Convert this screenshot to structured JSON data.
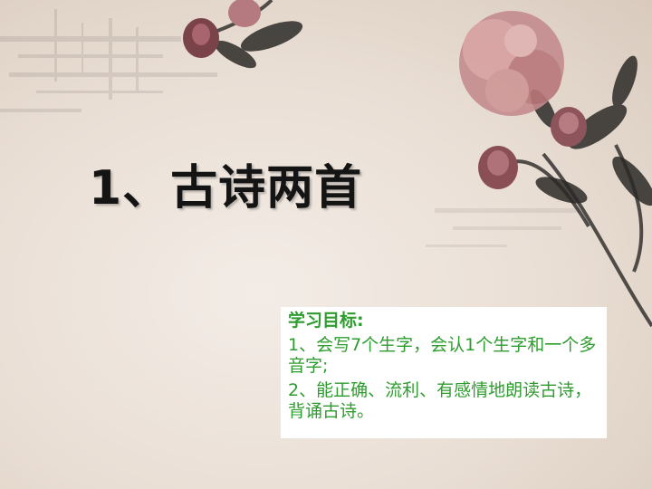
{
  "slide": {
    "title": "1、古诗两首",
    "objectives": {
      "heading": "学习目标:",
      "items": [
        "1、会写7个生字，会认1个生字和一个多音字;",
        "2、能正确、流利、有感情地朗读古诗，背诵古诗。"
      ]
    }
  },
  "colors": {
    "title": "#141414",
    "objective_text": "#2e9c2e",
    "background": "#ece3da",
    "flower": "#c98e8e"
  },
  "decoration": {
    "icon": "ink-peony-painting-icon"
  }
}
